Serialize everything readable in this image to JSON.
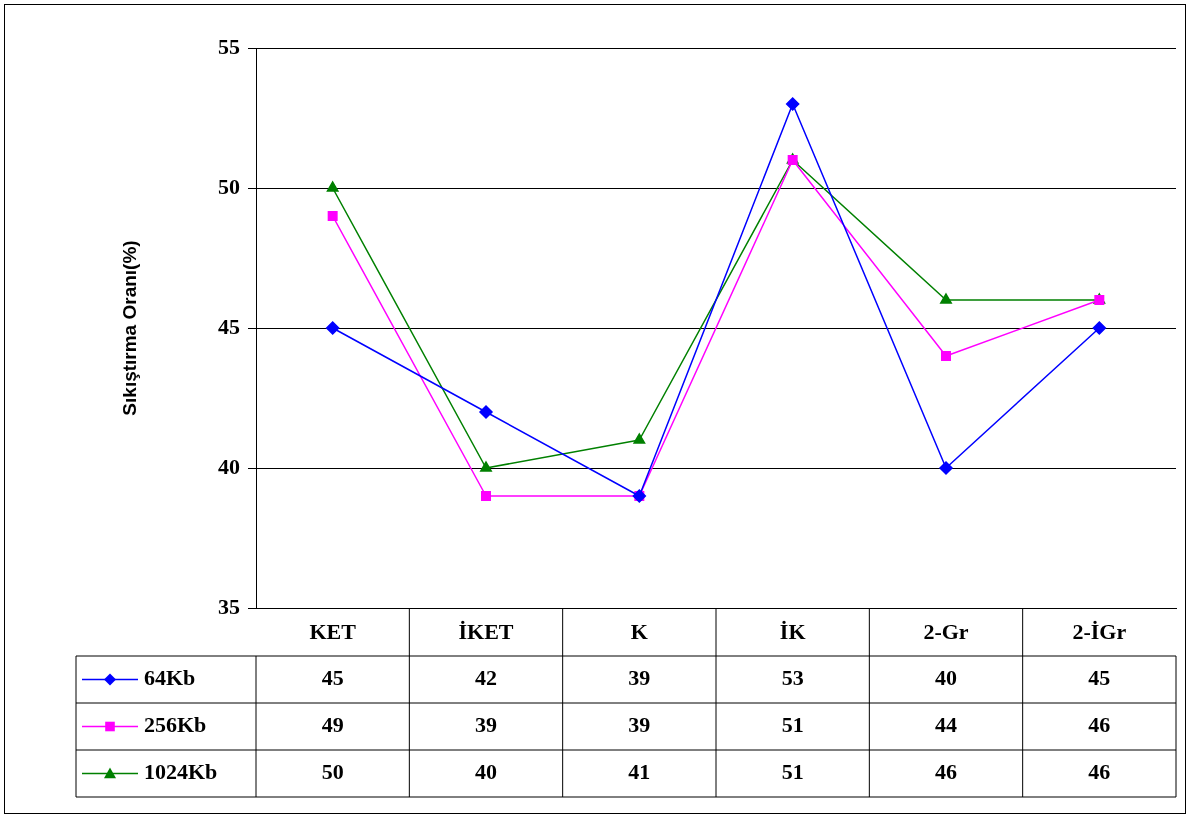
{
  "chart_data": {
    "type": "line",
    "ylabel": "Sıkıştırma Oranı(%)",
    "categories": [
      "KET",
      "İKET",
      "K",
      "İK",
      "2-Gr",
      "2-İGr"
    ],
    "series": [
      {
        "name": "64Kb",
        "color": "#0000ff",
        "marker": "diamond",
        "values": [
          45,
          42,
          39,
          53,
          40,
          45
        ]
      },
      {
        "name": "256Kb",
        "color": "#ff00ff",
        "marker": "square",
        "values": [
          49,
          39,
          39,
          51,
          44,
          46
        ]
      },
      {
        "name": "1024Kb",
        "color": "#008000",
        "marker": "triangle",
        "values": [
          50,
          40,
          41,
          51,
          46,
          46
        ]
      }
    ],
    "ylim": [
      35,
      55
    ],
    "yticks": [
      35,
      40,
      45,
      50,
      55
    ],
    "grid": "y",
    "legend": "bottom left",
    "data_labels": true
  }
}
